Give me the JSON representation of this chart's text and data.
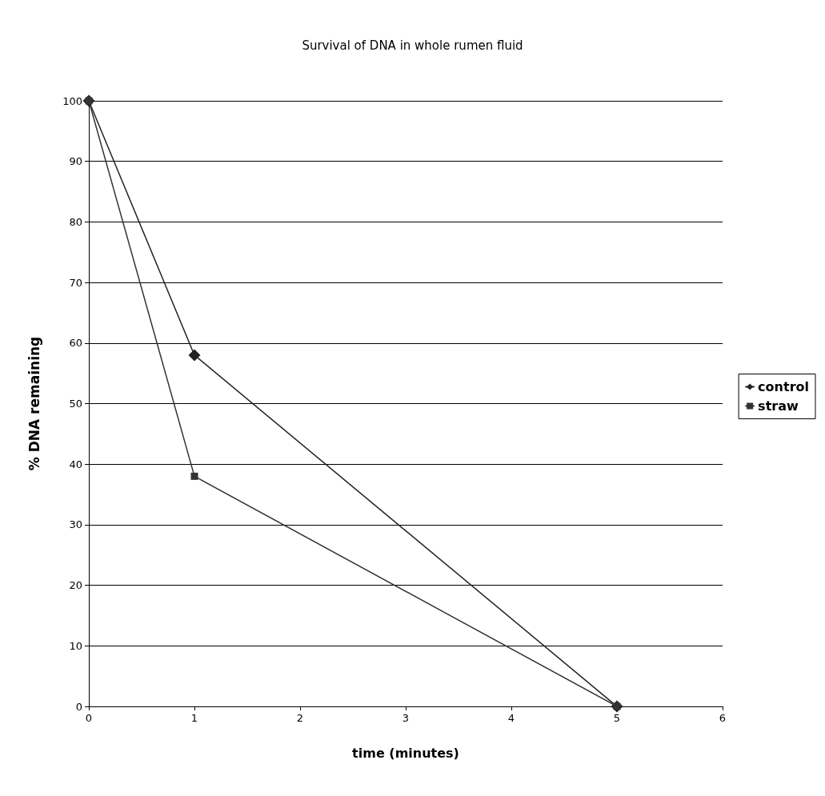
{
  "chart_data": {
    "type": "line",
    "title": "Survival of DNA in whole rumen fluid",
    "xlabel": "time (minutes)",
    "ylabel": "% DNA remaining",
    "x": [
      0,
      1,
      5
    ],
    "series": [
      {
        "name": "control",
        "color": "#222222",
        "values": [
          100,
          58,
          0
        ],
        "marker": "diamond"
      },
      {
        "name": "straw",
        "color": "#333333",
        "values": [
          100,
          38,
          0
        ],
        "marker": "square"
      }
    ],
    "xlim": [
      0,
      6
    ],
    "xticks": [
      0,
      1,
      2,
      3,
      4,
      5,
      6
    ],
    "ylim": [
      0,
      100
    ],
    "yticks": [
      0,
      10,
      20,
      30,
      40,
      50,
      60,
      70,
      80,
      90,
      100
    ],
    "grid": "y",
    "legend": "right",
    "line_style": "solid"
  }
}
